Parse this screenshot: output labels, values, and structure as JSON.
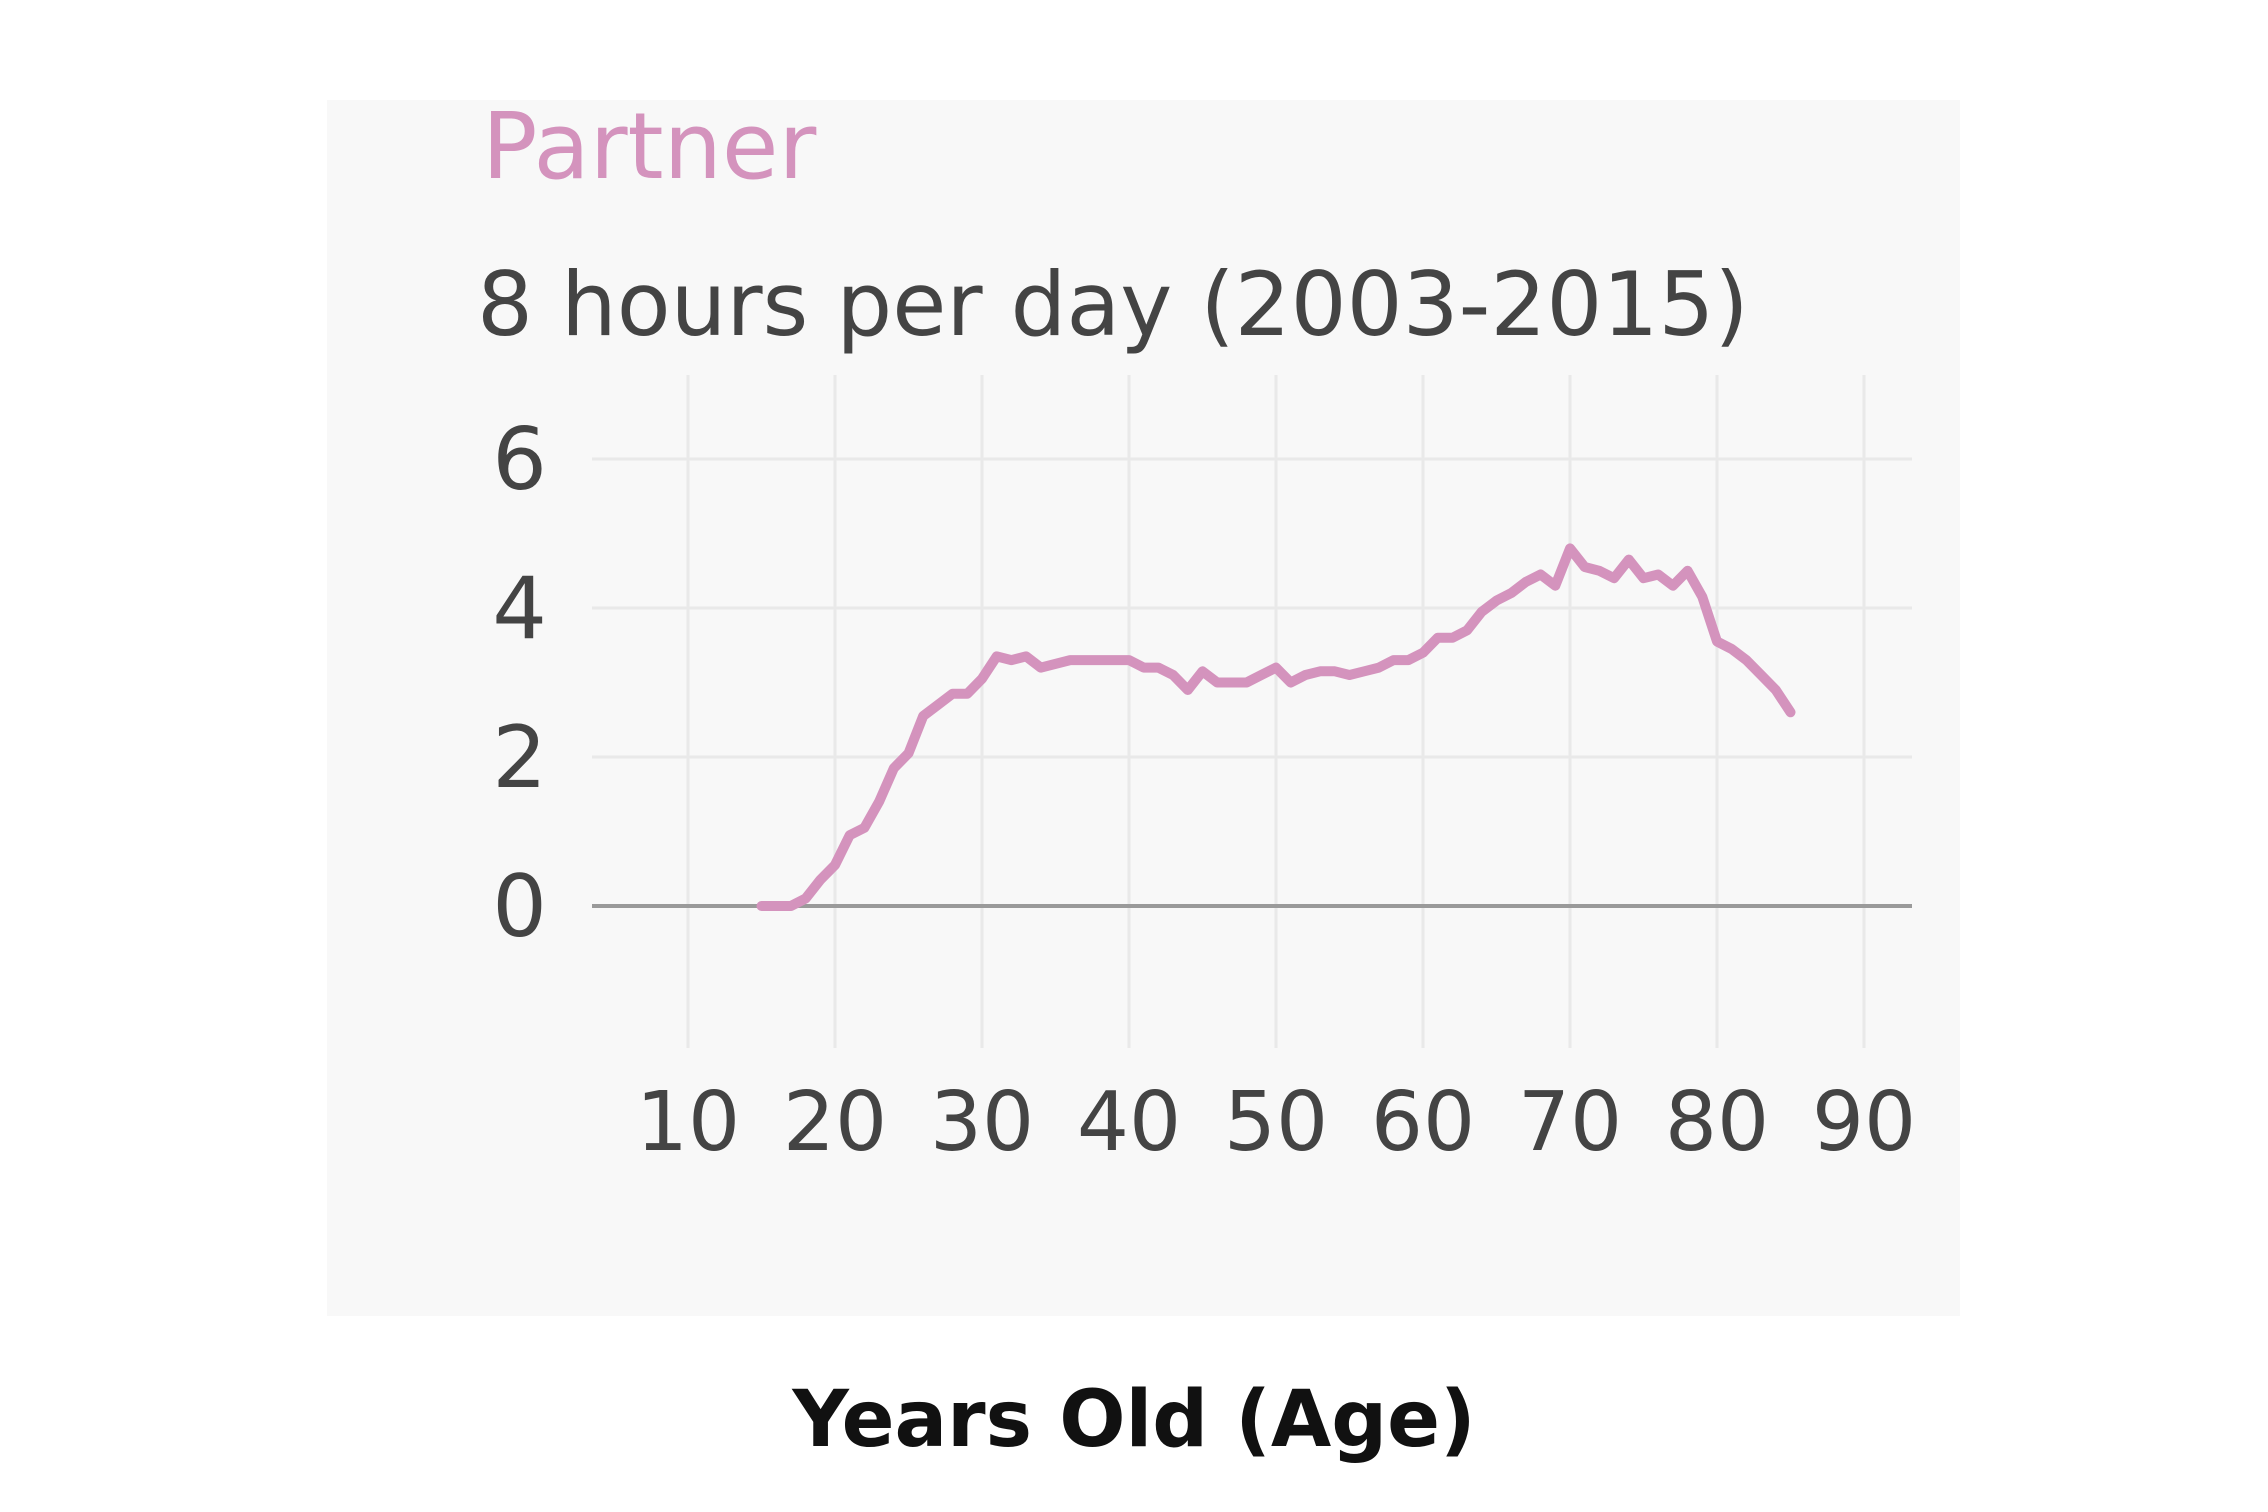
{
  "chart_data": {
    "type": "line",
    "title": "Partner",
    "subtitle": "8 hours per day (2003-2015)",
    "xlabel": "Years Old (Age)",
    "ylabel": "",
    "xlim": [
      5,
      95
    ],
    "ylim": [
      -2,
      7
    ],
    "x_ticks": [
      10,
      20,
      30,
      40,
      50,
      60,
      70,
      80,
      90
    ],
    "y_ticks": [
      0,
      2,
      4,
      6
    ],
    "grid": true,
    "legend": "none",
    "colors": {
      "line": "#d493bd",
      "title": "#d493bd",
      "zero_line": "#9a9a9a",
      "grid": "#e9e9e9"
    },
    "series": [
      {
        "x": [
          15,
          16,
          17,
          18,
          19,
          20,
          21,
          22,
          23,
          24,
          25,
          26,
          27,
          28,
          29,
          30,
          31,
          32,
          33,
          34,
          35,
          36,
          37,
          38,
          39,
          40,
          41,
          42,
          43,
          44,
          45,
          46,
          47,
          48,
          49,
          50,
          51,
          52,
          53,
          54,
          55,
          56,
          57,
          58,
          59,
          60,
          61,
          62,
          63,
          64,
          65,
          66,
          67,
          68,
          69,
          70,
          71,
          72,
          73,
          74,
          75,
          76,
          77,
          78,
          79,
          80,
          81,
          82,
          83,
          84,
          85
        ],
        "values": [
          0.0,
          0.0,
          0.0,
          0.1,
          0.35,
          0.55,
          0.95,
          1.05,
          1.4,
          1.85,
          2.05,
          2.55,
          2.7,
          2.85,
          2.85,
          3.05,
          3.35,
          3.3,
          3.35,
          3.2,
          3.25,
          3.3,
          3.3,
          3.3,
          3.3,
          3.3,
          3.2,
          3.2,
          3.1,
          2.9,
          3.15,
          3.0,
          3.0,
          3.0,
          3.1,
          3.2,
          3.0,
          3.1,
          3.15,
          3.15,
          3.1,
          3.15,
          3.2,
          3.3,
          3.3,
          3.4,
          3.6,
          3.6,
          3.7,
          3.95,
          4.1,
          4.2,
          4.35,
          4.45,
          4.3,
          4.8,
          4.55,
          4.5,
          4.4,
          4.65,
          4.4,
          4.45,
          4.3,
          4.5,
          4.15,
          3.55,
          3.45,
          3.3,
          3.1,
          2.9,
          2.6
        ]
      }
    ]
  }
}
